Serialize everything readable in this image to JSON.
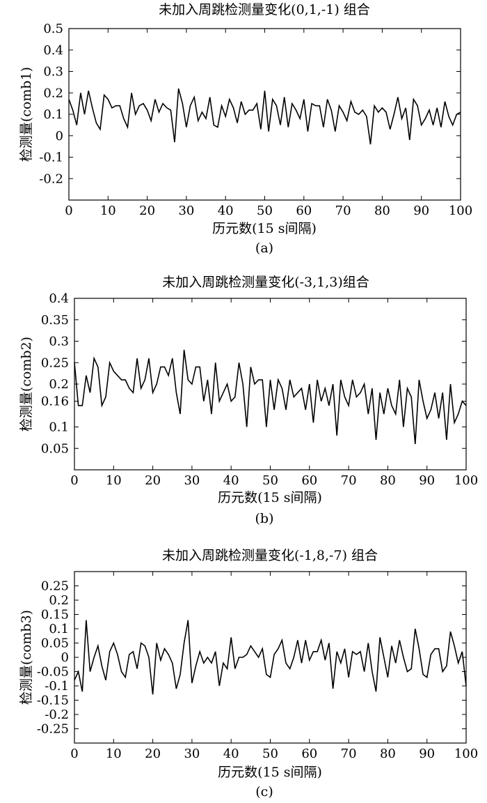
{
  "chart_data": [
    {
      "type": "line",
      "title": "未加入周跳检测量变化(0,1,-1) 组合",
      "xlabel": "历元数(15 s间隔)",
      "ylabel": "检测量(comb1)",
      "caption": "(a)",
      "xlim": [
        0,
        100
      ],
      "ylim": [
        -0.3,
        0.5
      ],
      "xticks": [
        "0",
        "10",
        "20",
        "30",
        "40",
        "50",
        "60",
        "70",
        "80",
        "90",
        "100"
      ],
      "yticks": [
        "0.5",
        "0.4",
        "0.3",
        "0.2",
        "0.1",
        "0",
        "-0.1",
        "-0.2"
      ],
      "grid": false,
      "x": [
        0,
        1,
        2,
        3,
        4,
        5,
        6,
        7,
        8,
        9,
        10,
        11,
        12,
        13,
        14,
        15,
        16,
        17,
        18,
        19,
        20,
        21,
        22,
        23,
        24,
        25,
        26,
        27,
        28,
        29,
        30,
        31,
        32,
        33,
        34,
        35,
        36,
        37,
        38,
        39,
        40,
        41,
        42,
        43,
        44,
        45,
        46,
        47,
        48,
        49,
        50,
        51,
        52,
        53,
        54,
        55,
        56,
        57,
        58,
        59,
        60,
        61,
        62,
        63,
        64,
        65,
        66,
        67,
        68,
        69,
        70,
        71,
        72,
        73,
        74,
        75,
        76,
        77,
        78,
        79,
        80,
        81,
        82,
        83,
        84,
        85,
        86,
        87,
        88,
        89,
        90,
        91,
        92,
        93,
        94,
        95,
        96,
        97,
        98,
        99,
        100
      ],
      "series": [
        {
          "values": [
            0.17,
            0.12,
            0.05,
            0.2,
            0.1,
            0.21,
            0.13,
            0.06,
            0.03,
            0.19,
            0.17,
            0.13,
            0.14,
            0.14,
            0.08,
            0.04,
            0.2,
            0.1,
            0.14,
            0.15,
            0.12,
            0.07,
            0.17,
            0.11,
            0.15,
            0.13,
            0.12,
            -0.03,
            0.22,
            0.15,
            0.04,
            0.14,
            0.18,
            0.07,
            0.11,
            0.08,
            0.18,
            0.05,
            0.04,
            0.14,
            0.09,
            0.17,
            0.13,
            0.06,
            0.16,
            0.1,
            0.12,
            0.12,
            0.15,
            0.03,
            0.21,
            0.02,
            0.17,
            0.14,
            0.05,
            0.18,
            0.04,
            0.15,
            0.12,
            0.08,
            0.17,
            0.02,
            0.15,
            0.14,
            0.14,
            0.04,
            0.17,
            0.12,
            0.02,
            0.14,
            0.11,
            0.07,
            0.16,
            0.11,
            0.1,
            0.12,
            0.09,
            -0.04,
            0.14,
            0.11,
            0.13,
            0.11,
            0.03,
            0.1,
            0.18,
            0.08,
            0.13,
            -0.02,
            0.17,
            0.14,
            0.05,
            0.08,
            0.12,
            0.05,
            0.13,
            0.04,
            0.16,
            0.09,
            0.05,
            0.1,
            0.11
          ]
        }
      ]
    },
    {
      "type": "line",
      "title": "未加入周跳检测量变化(-3,1,3)组合",
      "xlabel": "历元数(15 s间隔)",
      "ylabel": "检测量(comb2)",
      "caption": "(b)",
      "xlim": [
        0,
        100
      ],
      "ylim": [
        0,
        0.4
      ],
      "xticks": [
        "0",
        "10",
        "20",
        "30",
        "40",
        "50",
        "60",
        "70",
        "80",
        "90",
        "100"
      ],
      "yticks": [
        "0.4",
        "0.35",
        "0.3",
        "0.25",
        "0.2",
        "0.16",
        "0.1",
        "0.05"
      ],
      "grid": false,
      "x": [
        0,
        1,
        2,
        3,
        4,
        5,
        6,
        7,
        8,
        9,
        10,
        11,
        12,
        13,
        14,
        15,
        16,
        17,
        18,
        19,
        20,
        21,
        22,
        23,
        24,
        25,
        26,
        27,
        28,
        29,
        30,
        31,
        32,
        33,
        34,
        35,
        36,
        37,
        38,
        39,
        40,
        41,
        42,
        43,
        44,
        45,
        46,
        47,
        48,
        49,
        50,
        51,
        52,
        53,
        54,
        55,
        56,
        57,
        58,
        59,
        60,
        61,
        62,
        63,
        64,
        65,
        66,
        67,
        68,
        69,
        70,
        71,
        72,
        73,
        74,
        75,
        76,
        77,
        78,
        79,
        80,
        81,
        82,
        83,
        84,
        85,
        86,
        87,
        88,
        89,
        90,
        91,
        92,
        93,
        94,
        95,
        96,
        97,
        98,
        99,
        100
      ],
      "series": [
        {
          "values": [
            0.25,
            0.15,
            0.15,
            0.22,
            0.18,
            0.26,
            0.24,
            0.15,
            0.17,
            0.25,
            0.23,
            0.22,
            0.21,
            0.21,
            0.19,
            0.18,
            0.26,
            0.19,
            0.21,
            0.26,
            0.18,
            0.2,
            0.24,
            0.24,
            0.22,
            0.26,
            0.18,
            0.13,
            0.28,
            0.21,
            0.2,
            0.24,
            0.24,
            0.16,
            0.21,
            0.13,
            0.25,
            0.16,
            0.18,
            0.2,
            0.16,
            0.17,
            0.25,
            0.2,
            0.1,
            0.24,
            0.2,
            0.21,
            0.21,
            0.1,
            0.21,
            0.14,
            0.21,
            0.19,
            0.14,
            0.21,
            0.17,
            0.18,
            0.19,
            0.14,
            0.2,
            0.11,
            0.21,
            0.16,
            0.19,
            0.15,
            0.2,
            0.08,
            0.21,
            0.17,
            0.15,
            0.21,
            0.17,
            0.18,
            0.2,
            0.13,
            0.19,
            0.07,
            0.18,
            0.13,
            0.19,
            0.15,
            0.13,
            0.21,
            0.1,
            0.19,
            0.17,
            0.06,
            0.21,
            0.16,
            0.12,
            0.14,
            0.18,
            0.12,
            0.18,
            0.07,
            0.2,
            0.11,
            0.13,
            0.16,
            0.15
          ]
        }
      ]
    },
    {
      "type": "line",
      "title": "未加入周跳检测量变化(-1,8,-7) 组合",
      "xlabel": "历元数(15 s间隔)",
      "ylabel": "检测量(comb3)",
      "caption": "(c)",
      "xlim": [
        0,
        100
      ],
      "ylim": [
        -0.3,
        0.3
      ],
      "xticks": [
        "0",
        "10",
        "20",
        "30",
        "40",
        "50",
        "60",
        "70",
        "80",
        "90",
        "100"
      ],
      "yticks": [
        "0.25",
        "0.2",
        "0.15",
        "0.1",
        "0.05",
        "0",
        "-0.05",
        "-0.1",
        "-0.15",
        "-0.2",
        "-0.25"
      ],
      "grid": false,
      "x": [
        0,
        1,
        2,
        3,
        4,
        5,
        6,
        7,
        8,
        9,
        10,
        11,
        12,
        13,
        14,
        15,
        16,
        17,
        18,
        19,
        20,
        21,
        22,
        23,
        24,
        25,
        26,
        27,
        28,
        29,
        30,
        31,
        32,
        33,
        34,
        35,
        36,
        37,
        38,
        39,
        40,
        41,
        42,
        43,
        44,
        45,
        46,
        47,
        48,
        49,
        50,
        51,
        52,
        53,
        54,
        55,
        56,
        57,
        58,
        59,
        60,
        61,
        62,
        63,
        64,
        65,
        66,
        67,
        68,
        69,
        70,
        71,
        72,
        73,
        74,
        75,
        76,
        77,
        78,
        79,
        80,
        81,
        82,
        83,
        84,
        85,
        86,
        87,
        88,
        89,
        90,
        91,
        92,
        93,
        94,
        95,
        96,
        97,
        98,
        99,
        100
      ],
      "series": [
        {
          "values": [
            -0.08,
            -0.05,
            -0.12,
            0.13,
            -0.05,
            0,
            0.04,
            -0.03,
            -0.08,
            0.02,
            0.05,
            0.01,
            -0.05,
            -0.07,
            0.01,
            0.02,
            -0.04,
            0.05,
            0.04,
            0,
            -0.13,
            0.05,
            -0.01,
            0.03,
            0.01,
            -0.02,
            -0.11,
            -0.06,
            0.05,
            0.13,
            -0.09,
            -0.03,
            0.02,
            -0.02,
            0,
            -0.02,
            0.02,
            -0.1,
            -0.02,
            -0.04,
            0.07,
            -0.04,
            0,
            0,
            0.01,
            0.04,
            0.02,
            0,
            0.03,
            -0.06,
            -0.07,
            0.01,
            0.03,
            0.06,
            -0.02,
            -0.04,
            0,
            0.06,
            -0.02,
            0.06,
            -0.01,
            0.02,
            0.02,
            0.06,
            -0.01,
            0.05,
            -0.11,
            0.02,
            -0.02,
            0.03,
            -0.07,
            0.02,
            0.01,
            0.02,
            -0.05,
            0.05,
            -0.05,
            -0.12,
            0.07,
            0,
            -0.07,
            0.04,
            -0.02,
            0.06,
            0,
            -0.05,
            -0.04,
            0.1,
            0.03,
            -0.06,
            -0.07,
            0.01,
            0.03,
            0.03,
            -0.05,
            -0.03,
            0.09,
            0.04,
            -0.02,
            0.02,
            -0.1
          ]
        }
      ]
    }
  ]
}
